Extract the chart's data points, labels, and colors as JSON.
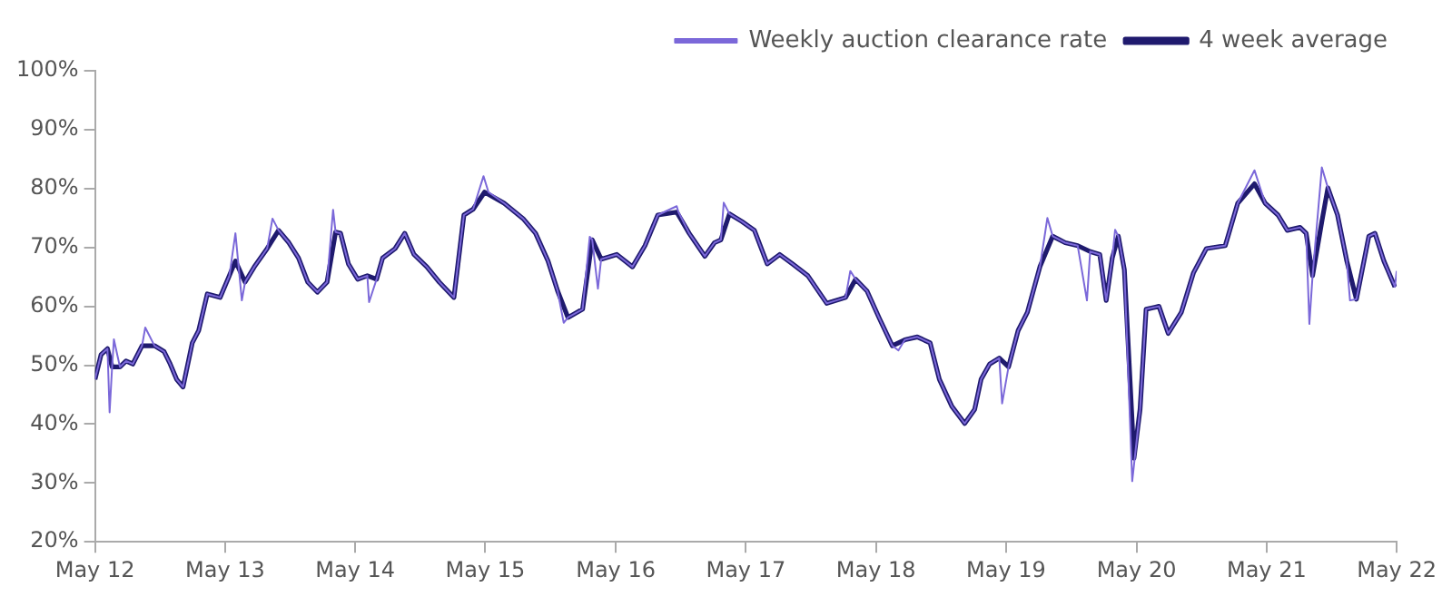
{
  "chart_data": {
    "type": "line",
    "xlim": [
      "2012-05-01",
      "2022-05-01"
    ],
    "xticks": [
      {
        "value": "2012-05-01",
        "label": "May 12"
      },
      {
        "value": "2013-05-01",
        "label": "May 13"
      },
      {
        "value": "2014-05-01",
        "label": "May 14"
      },
      {
        "value": "2015-05-01",
        "label": "May 15"
      },
      {
        "value": "2016-05-01",
        "label": "May 16"
      },
      {
        "value": "2017-05-01",
        "label": "May 17"
      },
      {
        "value": "2018-05-01",
        "label": "May 18"
      },
      {
        "value": "2019-05-01",
        "label": "May 19"
      },
      {
        "value": "2020-05-01",
        "label": "May 20"
      },
      {
        "value": "2021-05-01",
        "label": "May 21"
      },
      {
        "value": "2022-05-01",
        "label": "May 22"
      }
    ],
    "ylim": [
      20,
      100
    ],
    "yticks": [
      {
        "value": 20,
        "label": "20%"
      },
      {
        "value": 30,
        "label": "30%"
      },
      {
        "value": 40,
        "label": "40%"
      },
      {
        "value": 50,
        "label": "50%"
      },
      {
        "value": 60,
        "label": "60%"
      },
      {
        "value": 70,
        "label": "70%"
      },
      {
        "value": 80,
        "label": "80%"
      },
      {
        "value": 90,
        "label": "90%"
      },
      {
        "value": 100,
        "label": "100%"
      }
    ],
    "legend": "top right",
    "marker": "none",
    "series": [
      {
        "name": "Weekly auction clearance rate",
        "color": "#7b68d9",
        "x": [
          "2012-05-01",
          "2012-05-18",
          "2012-06-05",
          "2012-06-11",
          "2012-06-18",
          "2012-06-23",
          "2012-07-10",
          "2012-07-27",
          "2012-08-15",
          "2012-09-10",
          "2012-09-19",
          "2012-10-15",
          "2012-11-11",
          "2012-11-28",
          "2012-12-16",
          "2013-01-03",
          "2013-01-29",
          "2013-02-16",
          "2013-03-12",
          "2013-04-17",
          "2013-05-13",
          "2013-05-30",
          "2013-06-17",
          "2013-06-26",
          "2013-07-22",
          "2013-08-27",
          "2013-09-11",
          "2013-09-28",
          "2013-10-27",
          "2013-11-23",
          "2013-12-19",
          "2014-01-15",
          "2014-02-11",
          "2014-02-28",
          "2014-03-07",
          "2014-03-21",
          "2014-04-12",
          "2014-05-08",
          "2014-06-04",
          "2014-06-09",
          "2014-06-30",
          "2014-07-17",
          "2014-08-21",
          "2014-09-17",
          "2014-10-13",
          "2014-11-18",
          "2014-12-23",
          "2015-02-02",
          "2015-03-02",
          "2015-03-28",
          "2015-04-26",
          "2015-05-10",
          "2015-06-23",
          "2015-08-15",
          "2015-09-19",
          "2015-10-24",
          "2015-11-20",
          "2015-12-07",
          "2015-12-19",
          "2016-01-29",
          "2016-02-18",
          "2016-02-25",
          "2016-03-12",
          "2016-03-21",
          "2016-05-04",
          "2016-06-17",
          "2016-07-22",
          "2016-08-27",
          "2016-10-19",
          "2016-10-24",
          "2016-11-23",
          "2017-01-06",
          "2017-02-02",
          "2017-02-20",
          "2017-02-28",
          "2017-03-16",
          "2017-04-20",
          "2017-05-25",
          "2017-06-30",
          "2017-08-04",
          "2017-09-09",
          "2017-10-22",
          "2017-12-14",
          "2018-02-05",
          "2018-02-18",
          "2018-03-05",
          "2018-04-06",
          "2018-05-11",
          "2018-06-16",
          "2018-07-03",
          "2018-07-21",
          "2018-08-25",
          "2018-09-30",
          "2018-10-26",
          "2018-11-30",
          "2019-01-05",
          "2019-02-02",
          "2019-02-20",
          "2019-03-16",
          "2019-04-12",
          "2019-04-20",
          "2019-05-08",
          "2019-06-04",
          "2019-06-30",
          "2019-08-04",
          "2019-08-25",
          "2019-09-09",
          "2019-10-14",
          "2019-11-18",
          "2019-12-14",
          "2019-12-23",
          "2020-01-19",
          "2020-02-06",
          "2020-02-23",
          "2020-03-02",
          "2020-03-11",
          "2020-03-28",
          "2020-04-19",
          "2020-05-11",
          "2020-05-28",
          "2020-07-03",
          "2020-07-29",
          "2020-09-04",
          "2020-10-08",
          "2020-11-13",
          "2021-01-05",
          "2021-02-09",
          "2021-03-28",
          "2021-04-27",
          "2021-06-02",
          "2021-06-28",
          "2021-08-03",
          "2021-08-20",
          "2021-08-29",
          "2021-09-07",
          "2021-10-03",
          "2021-10-20",
          "2021-11-16",
          "2021-12-12",
          "2021-12-21",
          "2022-01-08",
          "2022-02-12",
          "2022-03-01",
          "2022-03-26",
          "2022-04-26",
          "2022-05-01"
        ],
        "values": [
          47.6,
          51.8,
          52.8,
          42.0,
          49.7,
          54.4,
          49.7,
          50.7,
          50.2,
          53.3,
          56.4,
          53.3,
          52.3,
          50.2,
          47.6,
          46.3,
          53.8,
          55.9,
          62.1,
          61.5,
          65.2,
          72.4,
          61.0,
          64.1,
          66.7,
          69.8,
          74.9,
          72.9,
          70.8,
          68.2,
          64.1,
          62.4,
          64.1,
          76.4,
          72.6,
          72.4,
          67.2,
          64.6,
          65.2,
          60.7,
          64.6,
          68.2,
          69.8,
          72.4,
          68.8,
          66.7,
          64.1,
          61.5,
          75.5,
          76.5,
          82.1,
          79.4,
          77.5,
          74.9,
          72.4,
          67.7,
          62.6,
          57.2,
          58.1,
          59.5,
          71.8,
          71.3,
          63.0,
          68.0,
          68.8,
          66.7,
          70.3,
          75.5,
          77.0,
          76.0,
          72.4,
          68.5,
          70.8,
          71.3,
          77.6,
          75.7,
          74.4,
          72.9,
          67.2,
          68.8,
          67.2,
          65.2,
          60.5,
          61.5,
          66.0,
          64.6,
          62.6,
          57.9,
          53.3,
          52.5,
          54.3,
          54.8,
          53.8,
          47.6,
          43.0,
          40.1,
          42.5,
          47.6,
          50.2,
          51.2,
          43.5,
          49.7,
          55.9,
          59.0,
          66.7,
          75.0,
          71.9,
          70.8,
          70.3,
          61.0,
          69.3,
          68.8,
          61.0,
          68.2,
          73.0,
          71.9,
          66.2,
          30.3,
          42.5,
          59.5,
          60.0,
          55.4,
          59.0,
          65.7,
          69.8,
          70.3,
          77.5,
          83.1,
          77.5,
          75.5,
          72.9,
          73.4,
          72.4,
          57.0,
          65.2,
          83.6,
          80.1,
          75.5,
          67.7,
          61.0,
          61.2,
          71.9,
          72.4,
          67.7,
          63.3,
          66.0
        ]
      },
      {
        "name": "4 week average",
        "color": "#1f1a6e",
        "x": [
          "2012-05-01",
          "2012-05-18",
          "2012-06-05",
          "2012-06-18",
          "2012-07-10",
          "2012-07-27",
          "2012-08-15",
          "2012-09-10",
          "2012-10-15",
          "2012-11-11",
          "2012-11-28",
          "2012-12-16",
          "2013-01-03",
          "2013-01-29",
          "2013-02-16",
          "2013-03-12",
          "2013-04-17",
          "2013-05-13",
          "2013-05-30",
          "2013-06-26",
          "2013-07-22",
          "2013-08-27",
          "2013-09-28",
          "2013-10-27",
          "2013-11-23",
          "2013-12-19",
          "2014-01-15",
          "2014-02-11",
          "2014-03-07",
          "2014-03-21",
          "2014-04-12",
          "2014-05-08",
          "2014-06-04",
          "2014-06-30",
          "2014-07-17",
          "2014-08-21",
          "2014-09-17",
          "2014-10-13",
          "2014-11-18",
          "2014-12-23",
          "2015-02-02",
          "2015-03-02",
          "2015-03-28",
          "2015-04-29",
          "2015-06-23",
          "2015-08-15",
          "2015-09-19",
          "2015-10-24",
          "2015-11-20",
          "2015-12-19",
          "2016-01-29",
          "2016-02-25",
          "2016-03-21",
          "2016-05-04",
          "2016-06-17",
          "2016-07-22",
          "2016-08-27",
          "2016-10-19",
          "2016-11-23",
          "2017-01-06",
          "2017-02-02",
          "2017-02-20",
          "2017-03-16",
          "2017-04-20",
          "2017-05-25",
          "2017-06-30",
          "2017-08-04",
          "2017-09-09",
          "2017-10-22",
          "2017-12-14",
          "2018-02-05",
          "2018-03-05",
          "2018-04-06",
          "2018-05-11",
          "2018-06-16",
          "2018-07-21",
          "2018-08-25",
          "2018-09-30",
          "2018-10-26",
          "2018-11-30",
          "2019-01-05",
          "2019-02-02",
          "2019-02-20",
          "2019-03-16",
          "2019-04-12",
          "2019-05-08",
          "2019-06-04",
          "2019-06-30",
          "2019-08-04",
          "2019-09-09",
          "2019-10-14",
          "2019-11-18",
          "2019-12-23",
          "2020-01-19",
          "2020-02-06",
          "2020-02-23",
          "2020-03-11",
          "2020-03-28",
          "2020-04-24",
          "2020-05-11",
          "2020-05-28",
          "2020-07-03",
          "2020-07-29",
          "2020-09-04",
          "2020-10-08",
          "2020-11-13",
          "2021-01-05",
          "2021-02-09",
          "2021-03-28",
          "2021-04-27",
          "2021-06-02",
          "2021-06-28",
          "2021-08-03",
          "2021-08-20",
          "2021-09-07",
          "2021-10-03",
          "2021-10-20",
          "2021-11-16",
          "2021-12-12",
          "2022-01-08",
          "2022-02-12",
          "2022-03-01",
          "2022-03-26",
          "2022-04-26"
        ],
        "values": [
          47.6,
          51.8,
          52.8,
          49.7,
          49.7,
          50.7,
          50.2,
          53.3,
          53.3,
          52.3,
          50.2,
          47.6,
          46.3,
          53.8,
          55.9,
          62.1,
          61.5,
          65.2,
          67.7,
          64.1,
          66.7,
          69.8,
          72.9,
          70.8,
          68.2,
          64.1,
          62.4,
          64.1,
          72.6,
          72.4,
          67.2,
          64.6,
          65.2,
          64.6,
          68.2,
          69.8,
          72.4,
          68.8,
          66.7,
          64.1,
          61.5,
          75.5,
          76.5,
          79.4,
          77.5,
          74.9,
          72.4,
          67.7,
          62.6,
          58.1,
          59.5,
          71.3,
          68.0,
          68.8,
          66.7,
          70.3,
          75.5,
          76.0,
          72.4,
          68.5,
          70.8,
          71.3,
          75.7,
          74.4,
          72.9,
          67.2,
          68.8,
          67.2,
          65.2,
          60.5,
          61.5,
          64.6,
          62.6,
          57.9,
          53.3,
          54.3,
          54.8,
          53.8,
          47.6,
          43.0,
          40.1,
          42.5,
          47.6,
          50.2,
          51.2,
          49.7,
          55.9,
          59.0,
          66.7,
          71.9,
          70.8,
          70.3,
          69.3,
          68.8,
          61.0,
          68.2,
          71.9,
          66.2,
          34.2,
          42.5,
          59.5,
          60.0,
          55.4,
          59.0,
          65.7,
          69.8,
          70.3,
          77.5,
          80.8,
          77.5,
          75.5,
          72.9,
          73.4,
          72.4,
          65.2,
          74.4,
          80.1,
          75.5,
          67.7,
          61.2,
          71.9,
          72.4,
          67.7,
          63.3
        ]
      }
    ]
  }
}
